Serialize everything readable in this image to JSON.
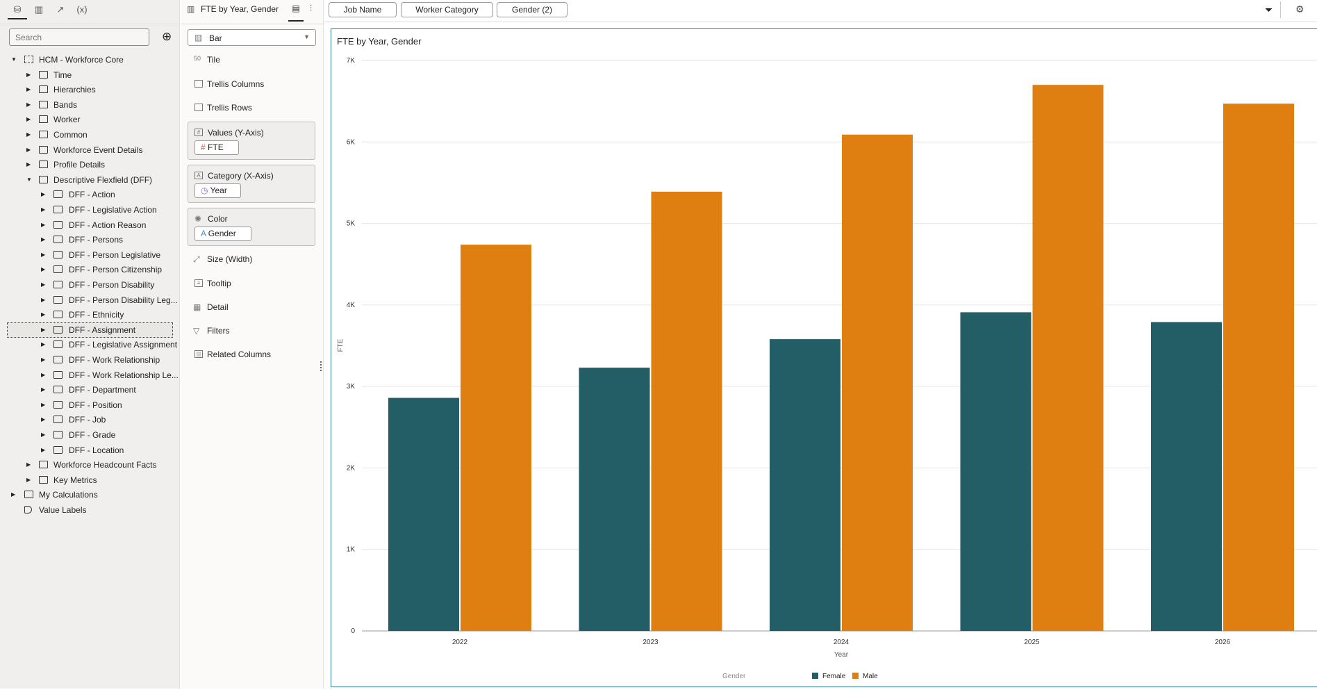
{
  "left_panel": {
    "tabs": [
      {
        "icon": "database-icon",
        "glyph": "⛁"
      },
      {
        "icon": "visualizations-icon",
        "glyph": "▥"
      },
      {
        "icon": "analytics-icon",
        "glyph": "↗"
      },
      {
        "icon": "calculations-icon",
        "glyph": "(x)"
      }
    ],
    "search_placeholder": "Search",
    "add_icon": "⊕",
    "tree": [
      {
        "label": "HCM - Workforce Core",
        "level": 0,
        "expanded": true,
        "type": "subject-area"
      },
      {
        "label": "Time",
        "level": 1
      },
      {
        "label": "Hierarchies",
        "level": 1
      },
      {
        "label": "Bands",
        "level": 1
      },
      {
        "label": "Worker",
        "level": 1
      },
      {
        "label": "Common",
        "level": 1
      },
      {
        "label": "Workforce Event Details",
        "level": 1
      },
      {
        "label": "Profile Details",
        "level": 1
      },
      {
        "label": "Descriptive Flexfield (DFF)",
        "level": 1,
        "expanded": true
      },
      {
        "label": "DFF - Action",
        "level": 2
      },
      {
        "label": "DFF - Legislative Action",
        "level": 2
      },
      {
        "label": "DFF - Action Reason",
        "level": 2
      },
      {
        "label": "DFF - Persons",
        "level": 2
      },
      {
        "label": "DFF - Person Legislative",
        "level": 2
      },
      {
        "label": "DFF - Person Citizenship",
        "level": 2
      },
      {
        "label": "DFF - Person Disability",
        "level": 2
      },
      {
        "label": "DFF - Person Disability Leg...",
        "level": 2
      },
      {
        "label": "DFF - Ethnicity",
        "level": 2
      },
      {
        "label": "DFF - Assignment",
        "level": 2,
        "selected": true
      },
      {
        "label": "DFF - Legislative Assignment",
        "level": 2
      },
      {
        "label": "DFF - Work Relationship",
        "level": 2
      },
      {
        "label": "DFF - Work Relationship Le...",
        "level": 2
      },
      {
        "label": "DFF - Department",
        "level": 2
      },
      {
        "label": "DFF - Position",
        "level": 2
      },
      {
        "label": "DFF - Job",
        "level": 2
      },
      {
        "label": "DFF - Grade",
        "level": 2
      },
      {
        "label": "DFF - Location",
        "level": 2
      },
      {
        "label": "Workforce Headcount Facts",
        "level": 1
      },
      {
        "label": "Key Metrics",
        "level": 1,
        "type": "metrics"
      },
      {
        "label": "My Calculations",
        "level": 0
      },
      {
        "label": "Value Labels",
        "level": 0,
        "type": "tag",
        "noarrow": true
      }
    ]
  },
  "grammar": {
    "title": "FTE by Year, Gender",
    "chart_type": "Bar",
    "items": {
      "tile": "Tile",
      "trellis_columns": "Trellis Columns",
      "trellis_rows": "Trellis Rows",
      "size": "Size (Width)",
      "tooltip": "Tooltip",
      "detail": "Detail",
      "filters": "Filters",
      "related": "Related Columns"
    },
    "values": {
      "label": "Values (Y-Axis)",
      "pill": "FTE"
    },
    "category": {
      "label": "Category (X-Axis)",
      "pill": "Year"
    },
    "color": {
      "label": "Color",
      "pill": "Gender"
    }
  },
  "filters": [
    "Job Name",
    "Worker Category",
    "Gender (2)"
  ],
  "chart_data": {
    "type": "bar",
    "title": "FTE by Year, Gender",
    "xlabel": "Year",
    "ylabel": "FTE",
    "categories": [
      "2022",
      "2023",
      "2024",
      "2025",
      "2026"
    ],
    "series": [
      {
        "name": "Female",
        "color": "#235e66",
        "values": [
          2860,
          3230,
          3580,
          3910,
          3790
        ]
      },
      {
        "name": "Male",
        "color": "#df7f11",
        "values": [
          4740,
          5390,
          6090,
          6700,
          6470
        ]
      }
    ],
    "ylim": [
      0,
      7000
    ],
    "yticks": [
      "0",
      "1K",
      "2K",
      "3K",
      "4K",
      "5K",
      "6K",
      "7K"
    ],
    "legend_title": "Gender",
    "legend_position": "bottom",
    "grid": true
  }
}
